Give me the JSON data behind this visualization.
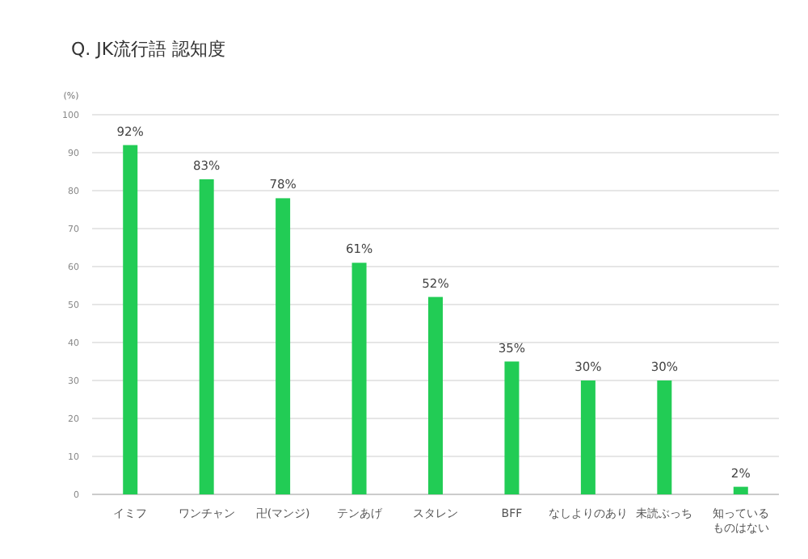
{
  "chart_data": {
    "type": "bar",
    "title": "Q. JK流行語 認知度",
    "ylabel": "(%)",
    "categories": [
      "イミフ",
      "ワンチャン",
      "卍(マンジ)",
      "テンあげ",
      "スタレン",
      "BFF",
      "なしよりのあり",
      "未読ぶっち",
      "知っているものはない"
    ],
    "values": [
      92,
      83,
      78,
      61,
      52,
      35,
      30,
      30,
      2
    ],
    "value_labels": [
      "92%",
      "83%",
      "78%",
      "61%",
      "52%",
      "35%",
      "30%",
      "30%",
      "2%"
    ],
    "color": "#22cc55",
    "ylim": [
      0,
      100
    ],
    "yticks": [
      0,
      10,
      20,
      30,
      40,
      50,
      60,
      70,
      80,
      90,
      100
    ],
    "grid": "y"
  }
}
